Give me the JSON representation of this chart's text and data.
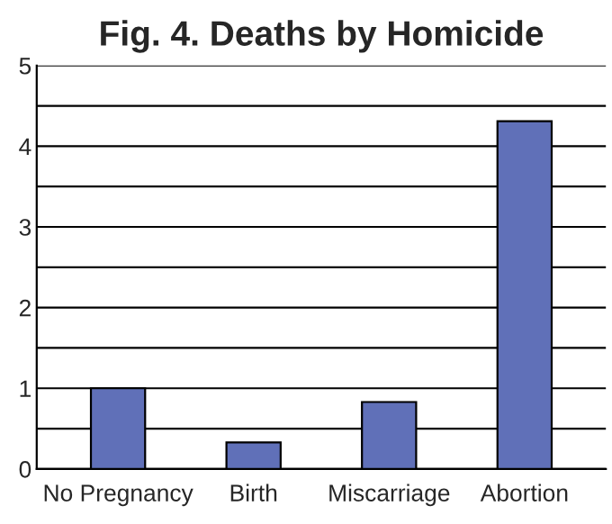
{
  "chart_data": {
    "type": "bar",
    "title": "Fig. 4. Deaths by Homicide",
    "categories": [
      "No Pregnancy",
      "Birth",
      "Miscarriage",
      "Abortion"
    ],
    "values": [
      1.0,
      0.33,
      0.83,
      4.31
    ],
    "color": "#6070b8",
    "ylim": [
      0,
      5
    ],
    "yticks": [
      0,
      {
        "value": 0.5,
        "label": null
      },
      1,
      {
        "value": 1.5,
        "label": null
      },
      2,
      {
        "value": 2.5,
        "label": null
      },
      3,
      {
        "value": 3.5,
        "label": null
      },
      4,
      {
        "value": 4.5,
        "label": null
      },
      5
    ],
    "grid": "y"
  }
}
